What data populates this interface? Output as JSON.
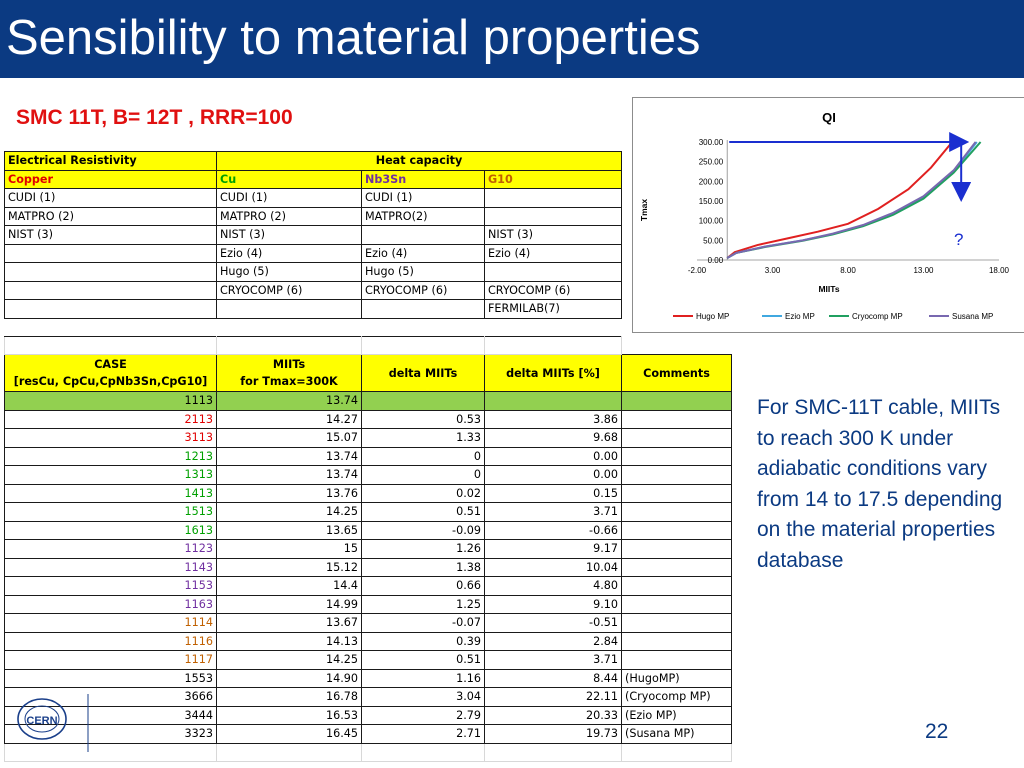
{
  "title": "Sensibility to material properties",
  "subtitle": "SMC 11T, B= 12T , RRR=100",
  "materials_table": {
    "header_left": "Electrical Resistivity",
    "header_right": "Heat capacity",
    "columns": [
      "Copper",
      "Cu",
      "Nb3Sn",
      "G10"
    ],
    "rows": [
      [
        "CUDI (1)",
        "CUDI (1)",
        "CUDI (1)",
        ""
      ],
      [
        "MATPRO (2)",
        "MATPRO (2)",
        "MATPRO(2)",
        ""
      ],
      [
        "NIST (3)",
        "NIST (3)",
        "",
        "NIST (3)"
      ],
      [
        "",
        "Ezio (4)",
        "Ezio (4)",
        "Ezio (4)"
      ],
      [
        "",
        "Hugo (5)",
        "Hugo (5)",
        ""
      ],
      [
        "",
        "CRYOCOMP (6)",
        "CRYOCOMP (6)",
        "CRYOCOMP (6)"
      ],
      [
        "",
        "",
        "",
        "FERMILAB(7)"
      ]
    ]
  },
  "cases_table": {
    "headers": {
      "case_line1": "CASE",
      "case_line2": "[resCu, CpCu,CpNb3Sn,CpG10]",
      "miits_line1": "MIITs",
      "miits_line2": "for Tmax=300K",
      "delta": "delta MIITs",
      "delta_pct": "delta MIITs [%]",
      "comments": "Comments"
    },
    "rows": [
      {
        "case": "1113",
        "miits": "13.74",
        "delta": "",
        "pct": "",
        "comment": "",
        "color": "black"
      },
      {
        "case": "2113",
        "miits": "14.27",
        "delta": "0.53",
        "pct": "3.86",
        "comment": "",
        "color": "red"
      },
      {
        "case": "3113",
        "miits": "15.07",
        "delta": "1.33",
        "pct": "9.68",
        "comment": "",
        "color": "red"
      },
      {
        "case": "1213",
        "miits": "13.74",
        "delta": "0",
        "pct": "0.00",
        "comment": "",
        "color": "green"
      },
      {
        "case": "1313",
        "miits": "13.74",
        "delta": "0",
        "pct": "0.00",
        "comment": "",
        "color": "green"
      },
      {
        "case": "1413",
        "miits": "13.76",
        "delta": "0.02",
        "pct": "0.15",
        "comment": "",
        "color": "green"
      },
      {
        "case": "1513",
        "miits": "14.25",
        "delta": "0.51",
        "pct": "3.71",
        "comment": "",
        "color": "green"
      },
      {
        "case": "1613",
        "miits": "13.65",
        "delta": "-0.09",
        "pct": "-0.66",
        "comment": "",
        "color": "green"
      },
      {
        "case": "1123",
        "miits": "15",
        "delta": "1.26",
        "pct": "9.17",
        "comment": "",
        "color": "purple"
      },
      {
        "case": "1143",
        "miits": "15.12",
        "delta": "1.38",
        "pct": "10.04",
        "comment": "",
        "color": "purple"
      },
      {
        "case": "1153",
        "miits": "14.4",
        "delta": "0.66",
        "pct": "4.80",
        "comment": "",
        "color": "purple"
      },
      {
        "case": "1163",
        "miits": "14.99",
        "delta": "1.25",
        "pct": "9.10",
        "comment": "",
        "color": "purple"
      },
      {
        "case": "1114",
        "miits": "13.67",
        "delta": "-0.07",
        "pct": "-0.51",
        "comment": "",
        "color": "orange"
      },
      {
        "case": "1116",
        "miits": "14.13",
        "delta": "0.39",
        "pct": "2.84",
        "comment": "",
        "color": "orange"
      },
      {
        "case": "1117",
        "miits": "14.25",
        "delta": "0.51",
        "pct": "3.71",
        "comment": "",
        "color": "orange"
      },
      {
        "case": "1553",
        "miits": "14.90",
        "delta": "1.16",
        "pct": "8.44",
        "comment": "(HugoMP)",
        "color": "black"
      },
      {
        "case": "3666",
        "miits": "16.78",
        "delta": "3.04",
        "pct": "22.11",
        "comment": "(Cryocomp MP)",
        "color": "black"
      },
      {
        "case": "3444",
        "miits": "16.53",
        "delta": "2.79",
        "pct": "20.33",
        "comment": "(Ezio MP)",
        "color": "black"
      },
      {
        "case": "3323",
        "miits": "16.45",
        "delta": "2.71",
        "pct": "19.73",
        "comment": "(Susana MP)",
        "color": "black"
      }
    ]
  },
  "chart_data": {
    "type": "line",
    "title": "QI",
    "xlabel": "MIITs",
    "ylabel": "Tmax",
    "xlim": [
      -2,
      18
    ],
    "ylim": [
      0,
      300
    ],
    "x_ticks": [
      "-2.00",
      "3.00",
      "8.00",
      "13.00",
      "18.00"
    ],
    "y_ticks": [
      "0.00",
      "50.00",
      "100.00",
      "150.00",
      "200.00",
      "250.00",
      "300.00"
    ],
    "legend_position": "bottom",
    "annotation": "?",
    "series": [
      {
        "name": "Hugo MP",
        "color": "#e02020",
        "x": [
          0,
          0.5,
          2,
          4,
          6,
          8,
          10,
          12,
          13.5,
          14.9
        ],
        "y": [
          5,
          20,
          38,
          55,
          72,
          92,
          130,
          180,
          235,
          300
        ]
      },
      {
        "name": "Ezio MP",
        "color": "#40a8e0",
        "x": [
          0,
          0.6,
          2.5,
          5,
          7,
          9,
          11,
          13,
          15,
          16.53
        ],
        "y": [
          5,
          18,
          34,
          50,
          66,
          88,
          118,
          160,
          225,
          300
        ]
      },
      {
        "name": "Cryocomp MP",
        "color": "#20a060",
        "x": [
          0,
          0.6,
          2.5,
          5,
          7,
          9,
          11,
          13,
          15,
          16.78
        ],
        "y": [
          5,
          18,
          33,
          49,
          65,
          86,
          115,
          156,
          222,
          300
        ]
      },
      {
        "name": "Susana MP",
        "color": "#7868b0",
        "x": [
          0,
          0.6,
          2.5,
          5,
          7,
          9,
          11,
          13,
          15,
          16.45
        ],
        "y": [
          5,
          18,
          34,
          50,
          67,
          89,
          120,
          162,
          228,
          300
        ]
      }
    ]
  },
  "note": "For SMC-11T cable, MIITs to reach 300 K under adiabatic conditions vary from 14 to 17.5 depending on the material properties database",
  "page_number": "22",
  "logo_text": "CERN",
  "colors": {
    "title_bar": "#0b3a82",
    "subtitle": "#e01010",
    "header_yellow": "#ffff00",
    "highlight_green": "#92d050",
    "arrow": "#1a2fd0"
  }
}
